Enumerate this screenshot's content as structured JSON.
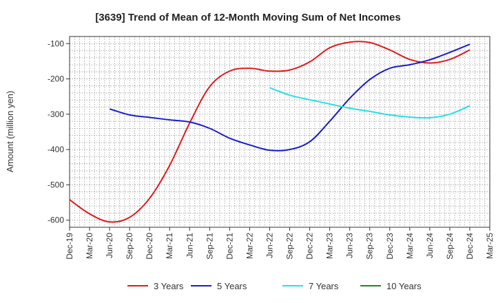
{
  "chart_data": {
    "type": "line",
    "title": "[3639]  Trend of Mean of 12-Month Moving Sum of Net Incomes",
    "xlabel": "",
    "ylabel": "Amount (million yen)",
    "ylim": [
      -620,
      -80
    ],
    "yticks": [
      -100,
      -200,
      -300,
      -400,
      -500,
      -600
    ],
    "ytick_labels": [
      "-100",
      "-200",
      "-300",
      "-400",
      "-500",
      "-600"
    ],
    "categories": [
      "Dec-19",
      "Mar-20",
      "Jun-20",
      "Sep-20",
      "Dec-20",
      "Mar-21",
      "Jun-21",
      "Sep-21",
      "Dec-21",
      "Mar-22",
      "Jun-22",
      "Sep-22",
      "Dec-22",
      "Mar-23",
      "Jun-23",
      "Sep-23",
      "Dec-23",
      "Mar-24",
      "Jun-24",
      "Sep-24",
      "Dec-24",
      "Mar-25"
    ],
    "grid": true,
    "legend_position": "bottom",
    "series": [
      {
        "name": "3 Years",
        "color": "#dd1a1a",
        "values": [
          -542,
          -582,
          -605,
          -592,
          -538,
          -445,
          -325,
          -222,
          -178,
          -170,
          -178,
          -175,
          -152,
          -112,
          -96,
          -97,
          -118,
          -145,
          -155,
          -145,
          -118,
          null
        ]
      },
      {
        "name": "5 Years",
        "color": "#1a1acc",
        "values": [
          null,
          null,
          -285,
          -302,
          -309,
          -316,
          -322,
          -340,
          -368,
          -387,
          -402,
          -400,
          -378,
          -320,
          -255,
          -202,
          -170,
          -160,
          -146,
          -125,
          -102,
          null
        ]
      },
      {
        "name": "7 Years",
        "color": "#22e0e6",
        "values": [
          null,
          null,
          null,
          null,
          null,
          null,
          null,
          null,
          null,
          null,
          -225,
          -246,
          -259,
          -271,
          -283,
          -292,
          -302,
          -308,
          -310,
          -300,
          -276,
          null
        ]
      },
      {
        "name": "10 Years",
        "color": "#1a8a1a",
        "values": [
          null,
          null,
          null,
          null,
          null,
          null,
          null,
          null,
          null,
          null,
          null,
          null,
          null,
          null,
          null,
          null,
          null,
          null,
          null,
          null,
          null,
          null
        ]
      }
    ]
  }
}
